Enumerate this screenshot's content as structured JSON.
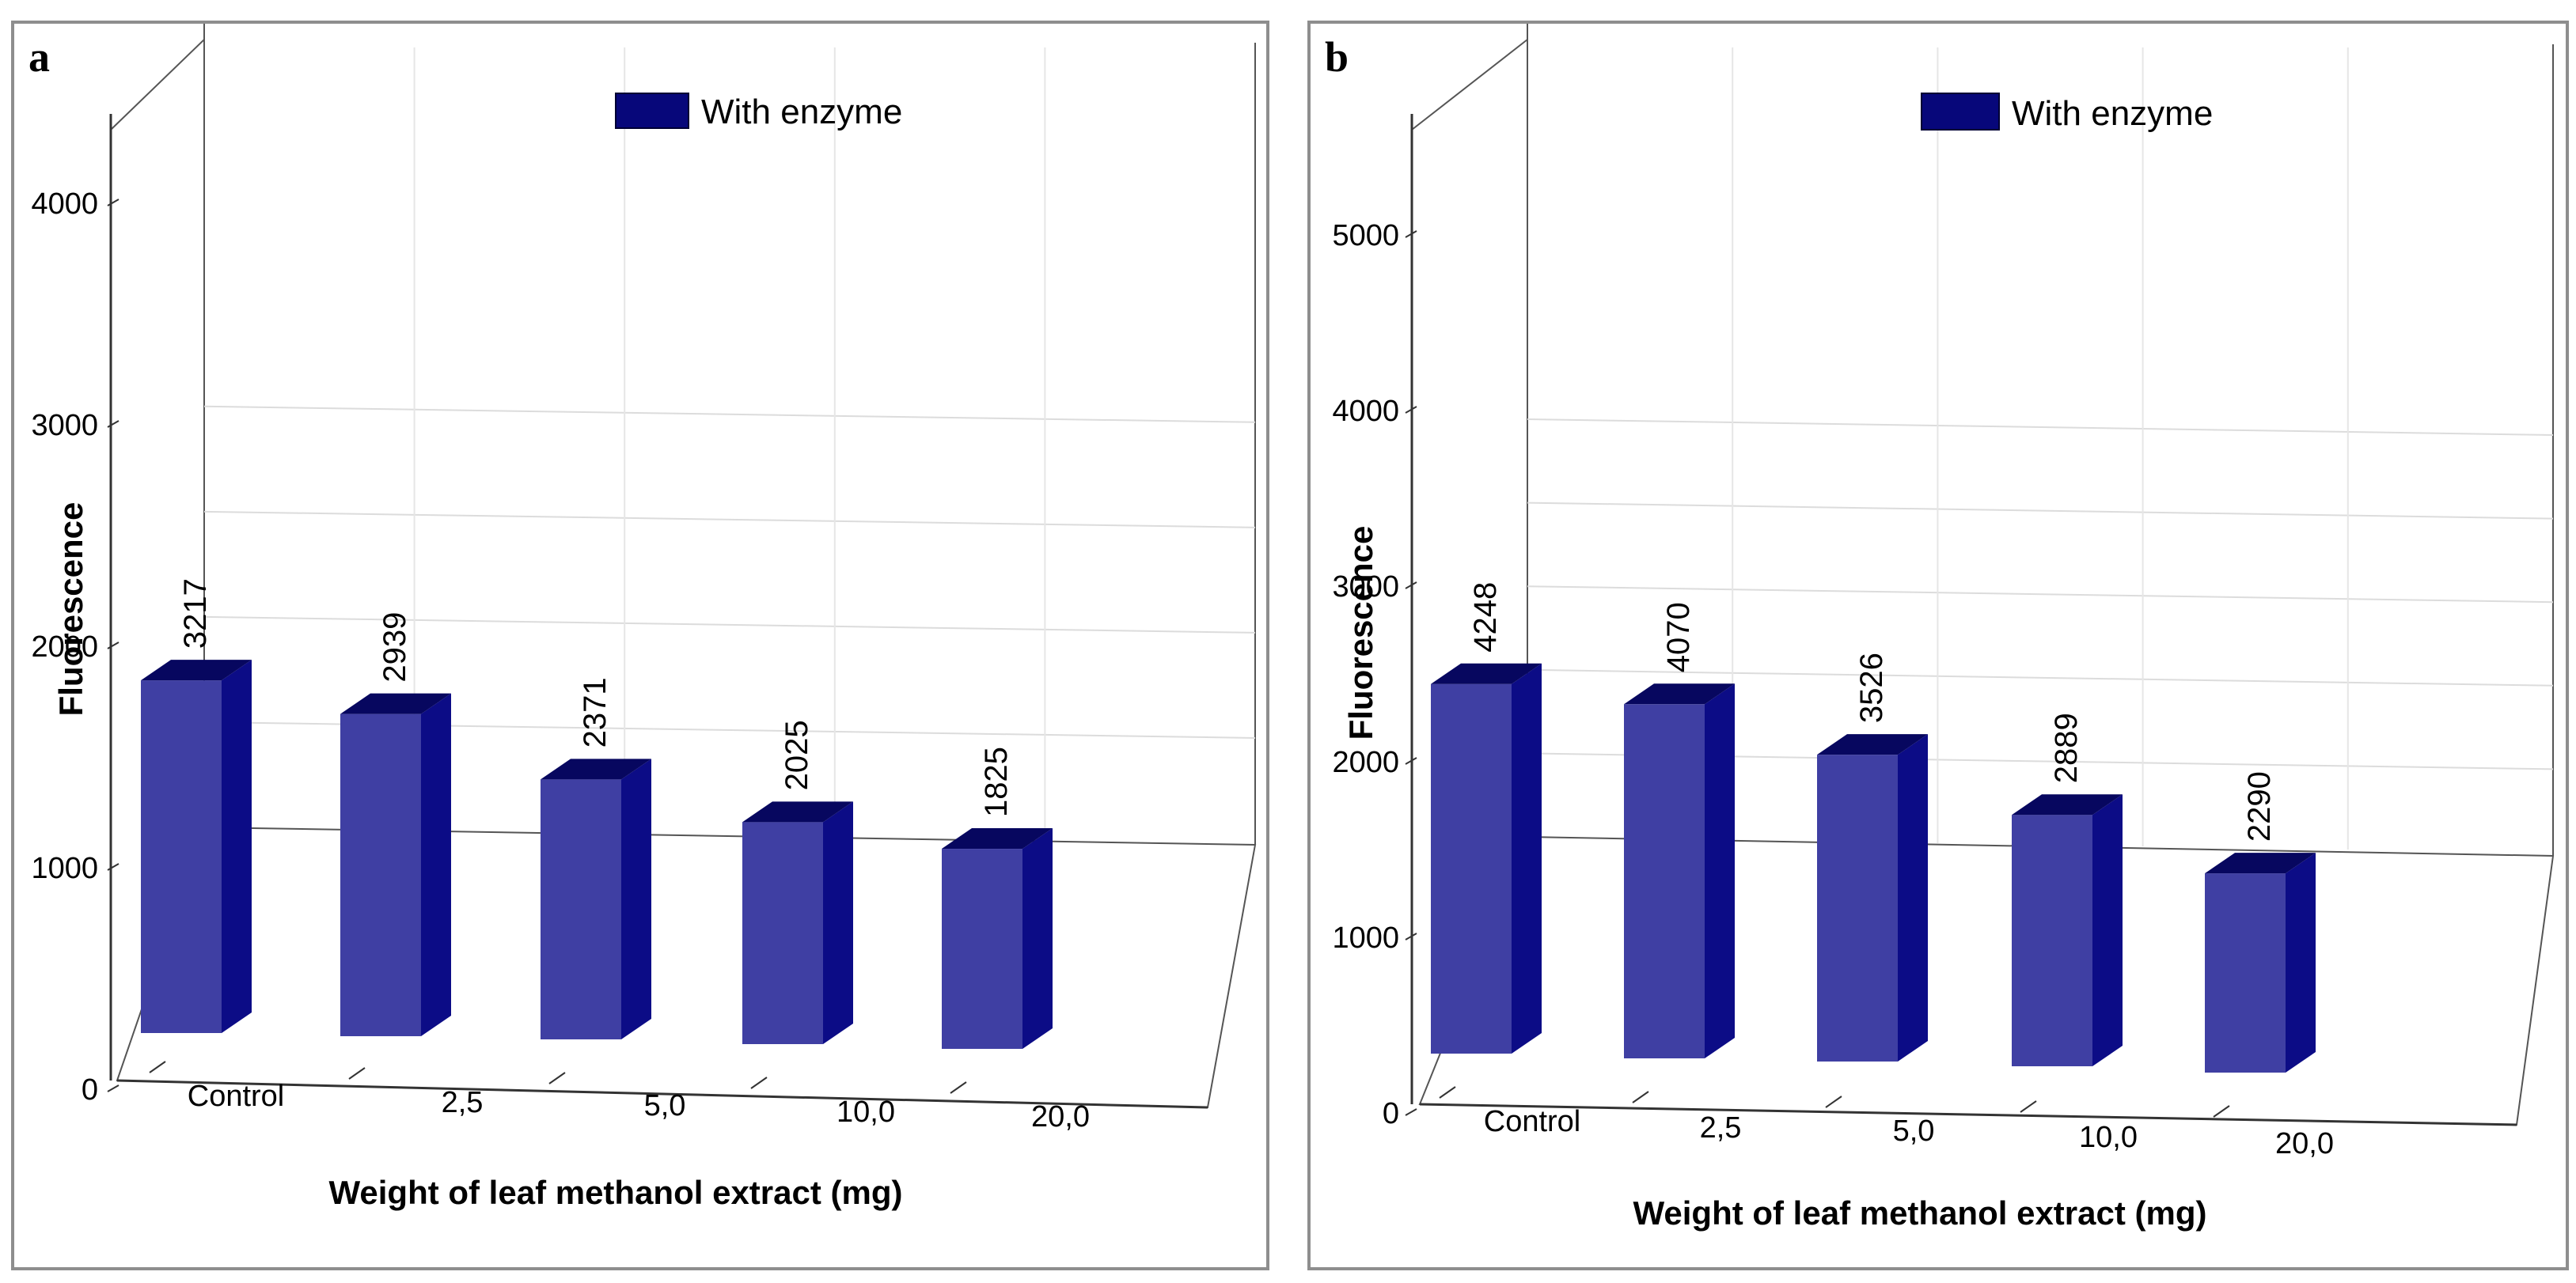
{
  "chart_data": [
    {
      "panel": "a",
      "type": "bar",
      "style": "3d",
      "title": "",
      "categories": [
        "Control",
        "2,5",
        "5,0",
        "10,0",
        "20,0"
      ],
      "series": [
        {
          "name": "With enzyme",
          "values": [
            3217,
            2939,
            2371,
            2025,
            1825
          ]
        }
      ],
      "value_labels": [
        "3217",
        "2939",
        "2371",
        "2025",
        "1825"
      ],
      "xlabel": "Weight of leaf methanol extract (mg)",
      "ylabel": "Fluorescence",
      "yticks": [
        "0",
        "1000",
        "2000",
        "3000",
        "4000"
      ],
      "ylim": [
        0,
        4500
      ],
      "legend_position": "top",
      "colors": {
        "front": "#3f3fa3",
        "side": "#0c0c86",
        "top": "#07075f"
      }
    },
    {
      "panel": "b",
      "type": "bar",
      "style": "3d",
      "title": "",
      "categories": [
        "Control",
        "2,5",
        "5,0",
        "10,0",
        "20,0"
      ],
      "series": [
        {
          "name": "With enzyme",
          "values": [
            4248,
            4070,
            3526,
            2889,
            2290
          ]
        }
      ],
      "value_labels": [
        "4248",
        "4070",
        "3526",
        "2889",
        "2290"
      ],
      "xlabel": "Weight of leaf methanol extract (mg)",
      "ylabel": "Fluorescence",
      "yticks": [
        "0",
        "1000",
        "2000",
        "3000",
        "4000",
        "5000"
      ],
      "ylim": [
        0,
        5600
      ],
      "legend_position": "top",
      "colors": {
        "front": "#3f3fa3",
        "side": "#0c0c86",
        "top": "#07075f"
      }
    }
  ]
}
